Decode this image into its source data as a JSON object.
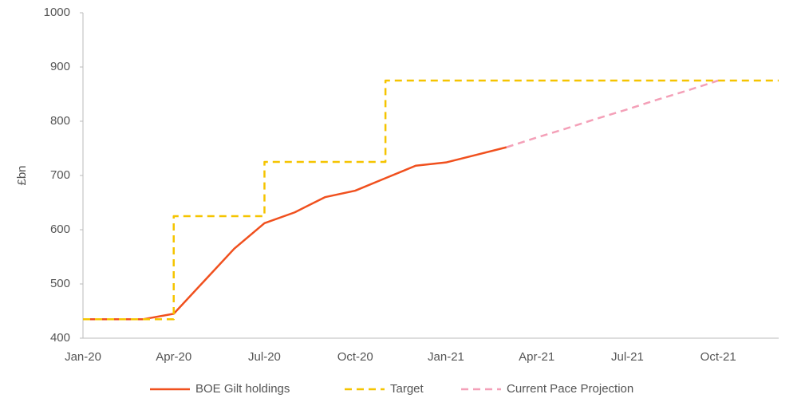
{
  "chart_data": {
    "type": "line",
    "y_label": "£bn",
    "categories": [
      "Jan-20",
      null,
      null,
      "Apr-20",
      null,
      null,
      "Jul-20",
      null,
      null,
      "Oct-20",
      null,
      null,
      "Jan-21",
      null,
      null,
      "Apr-21",
      null,
      null,
      "Jul-21",
      null,
      null,
      "Oct-21",
      null,
      null
    ],
    "series": [
      {
        "name": "BOE Gilt holdings",
        "color": "#f0501e",
        "dash": false,
        "step": false,
        "values": [
          435,
          435,
          435,
          445,
          505,
          565,
          612,
          632,
          660,
          672,
          695,
          718,
          724,
          738,
          752,
          null,
          null,
          null,
          null,
          null,
          null,
          null,
          null,
          null
        ]
      },
      {
        "name": "Target",
        "color": "#f5c400",
        "dash": true,
        "step": true,
        "values": [
          435,
          435,
          435,
          625,
          625,
          625,
          725,
          725,
          725,
          725,
          875,
          875,
          875,
          875,
          875,
          875,
          875,
          875,
          875,
          875,
          875,
          875,
          875,
          875
        ]
      },
      {
        "name": "Current Pace Projection",
        "color": "#f4a0b8",
        "dash": true,
        "step": false,
        "values": [
          null,
          null,
          null,
          null,
          null,
          null,
          null,
          null,
          null,
          null,
          null,
          null,
          null,
          null,
          752,
          770,
          787,
          805,
          822,
          840,
          857,
          875,
          null,
          null
        ]
      }
    ],
    "ylim": [
      400,
      1000
    ],
    "yticks": [
      400,
      500,
      600,
      700,
      800,
      900,
      1000
    ],
    "grid": false,
    "legend": "bottom"
  }
}
